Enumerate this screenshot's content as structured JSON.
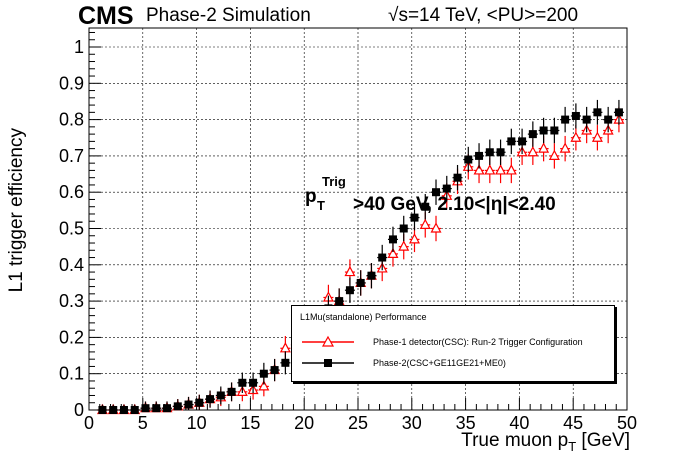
{
  "header": {
    "experiment": "CMS",
    "subtitle": "Phase-2 Simulation",
    "energy_prefix": "√",
    "energy_rad": "s",
    "energy_rest": "=14 TeV, <PU>=200"
  },
  "annotation": {
    "p": "p",
    "sup": "Trig",
    "sub": "T",
    "text": ">40 GeV, 2.10<|η|<2.40"
  },
  "legend": {
    "header": "L1Mu(standalone) Performance",
    "entries": [
      {
        "label": "Phase-1 detector(CSC): Run-2 Trigger Configuration",
        "color": "#ff0000",
        "marker": "open-triangle"
      },
      {
        "label": "Phase-2(CSC+GE11GE21+ME0)",
        "color": "#000000",
        "marker": "filled-square"
      }
    ]
  },
  "axes": {
    "xlabel_main": "True muon p",
    "xlabel_sub": "T",
    "xlabel_unit": " [GeV]",
    "ylabel": "L1 trigger efficiency"
  },
  "chart_data": {
    "type": "scatter",
    "xlim": [
      0,
      50
    ],
    "ylim": [
      0,
      1.05
    ],
    "xticks": [
      0,
      5,
      10,
      15,
      20,
      25,
      30,
      35,
      40,
      45,
      50
    ],
    "yticks": [
      0,
      0.1,
      0.2,
      0.3,
      0.4,
      0.5,
      0.6,
      0.7,
      0.8,
      0.9,
      1
    ],
    "ytick_labels": [
      "0",
      "0.1",
      "0.2",
      "0.3",
      "0.4",
      "0.5",
      "0.6",
      "0.7",
      "0.8",
      "0.9",
      "1"
    ],
    "grid": true,
    "legend_position": "bottom-right",
    "series": [
      {
        "name": "Phase-1 detector(CSC): Run-2 Trigger Configuration",
        "color": "#ff0000",
        "marker": "open-triangle",
        "x": [
          1.25,
          2.25,
          3.25,
          4.25,
          5.25,
          6.25,
          7.25,
          8.25,
          9.25,
          10.25,
          11.25,
          12.25,
          13.25,
          14.25,
          15.25,
          16.25,
          17.25,
          18.25,
          19.25,
          20.25,
          21.25,
          22.25,
          23.25,
          24.25,
          25.25,
          26.25,
          27.25,
          28.25,
          29.25,
          30.25,
          31.25,
          32.25,
          33.25,
          34.25,
          35.25,
          36.25,
          37.25,
          38.25,
          39.25,
          40.25,
          41.25,
          42.25,
          43.25,
          44.25,
          45.25,
          46.25,
          47.25,
          48.25,
          49.25
        ],
        "y": [
          0.0,
          0.0,
          0.0,
          0.0,
          0.005,
          0.005,
          0.005,
          0.01,
          0.015,
          0.02,
          0.03,
          0.035,
          0.05,
          0.05,
          0.055,
          0.065,
          0.11,
          0.17,
          0.19,
          0.2,
          0.23,
          0.31,
          0.3,
          0.38,
          0.35,
          0.37,
          0.39,
          0.43,
          0.45,
          0.47,
          0.51,
          0.5,
          0.59,
          0.63,
          0.67,
          0.66,
          0.66,
          0.66,
          0.66,
          0.71,
          0.71,
          0.72,
          0.7,
          0.72,
          0.75,
          0.77,
          0.75,
          0.77,
          0.8
        ]
      },
      {
        "name": "Phase-2(CSC+GE11GE21+ME0)",
        "color": "#000000",
        "marker": "filled-square",
        "x": [
          1.25,
          2.25,
          3.25,
          4.25,
          5.25,
          6.25,
          7.25,
          8.25,
          9.25,
          10.25,
          11.25,
          12.25,
          13.25,
          14.25,
          15.25,
          16.25,
          17.25,
          18.25,
          19.25,
          20.25,
          21.25,
          22.25,
          23.25,
          24.25,
          25.25,
          26.25,
          27.25,
          28.25,
          29.25,
          30.25,
          31.25,
          32.25,
          33.25,
          34.25,
          35.25,
          36.25,
          37.25,
          38.25,
          39.25,
          40.25,
          41.25,
          42.25,
          43.25,
          44.25,
          45.25,
          46.25,
          47.25,
          48.25,
          49.25
        ],
        "y": [
          0.0,
          0.0,
          0.0,
          0.0,
          0.005,
          0.005,
          0.005,
          0.01,
          0.015,
          0.02,
          0.03,
          0.04,
          0.05,
          0.075,
          0.075,
          0.1,
          0.11,
          0.13,
          0.17,
          0.2,
          0.24,
          0.28,
          0.3,
          0.33,
          0.35,
          0.37,
          0.42,
          0.47,
          0.5,
          0.53,
          0.56,
          0.6,
          0.61,
          0.64,
          0.69,
          0.7,
          0.71,
          0.71,
          0.74,
          0.74,
          0.76,
          0.77,
          0.77,
          0.8,
          0.81,
          0.8,
          0.82,
          0.8,
          0.82
        ]
      }
    ]
  }
}
